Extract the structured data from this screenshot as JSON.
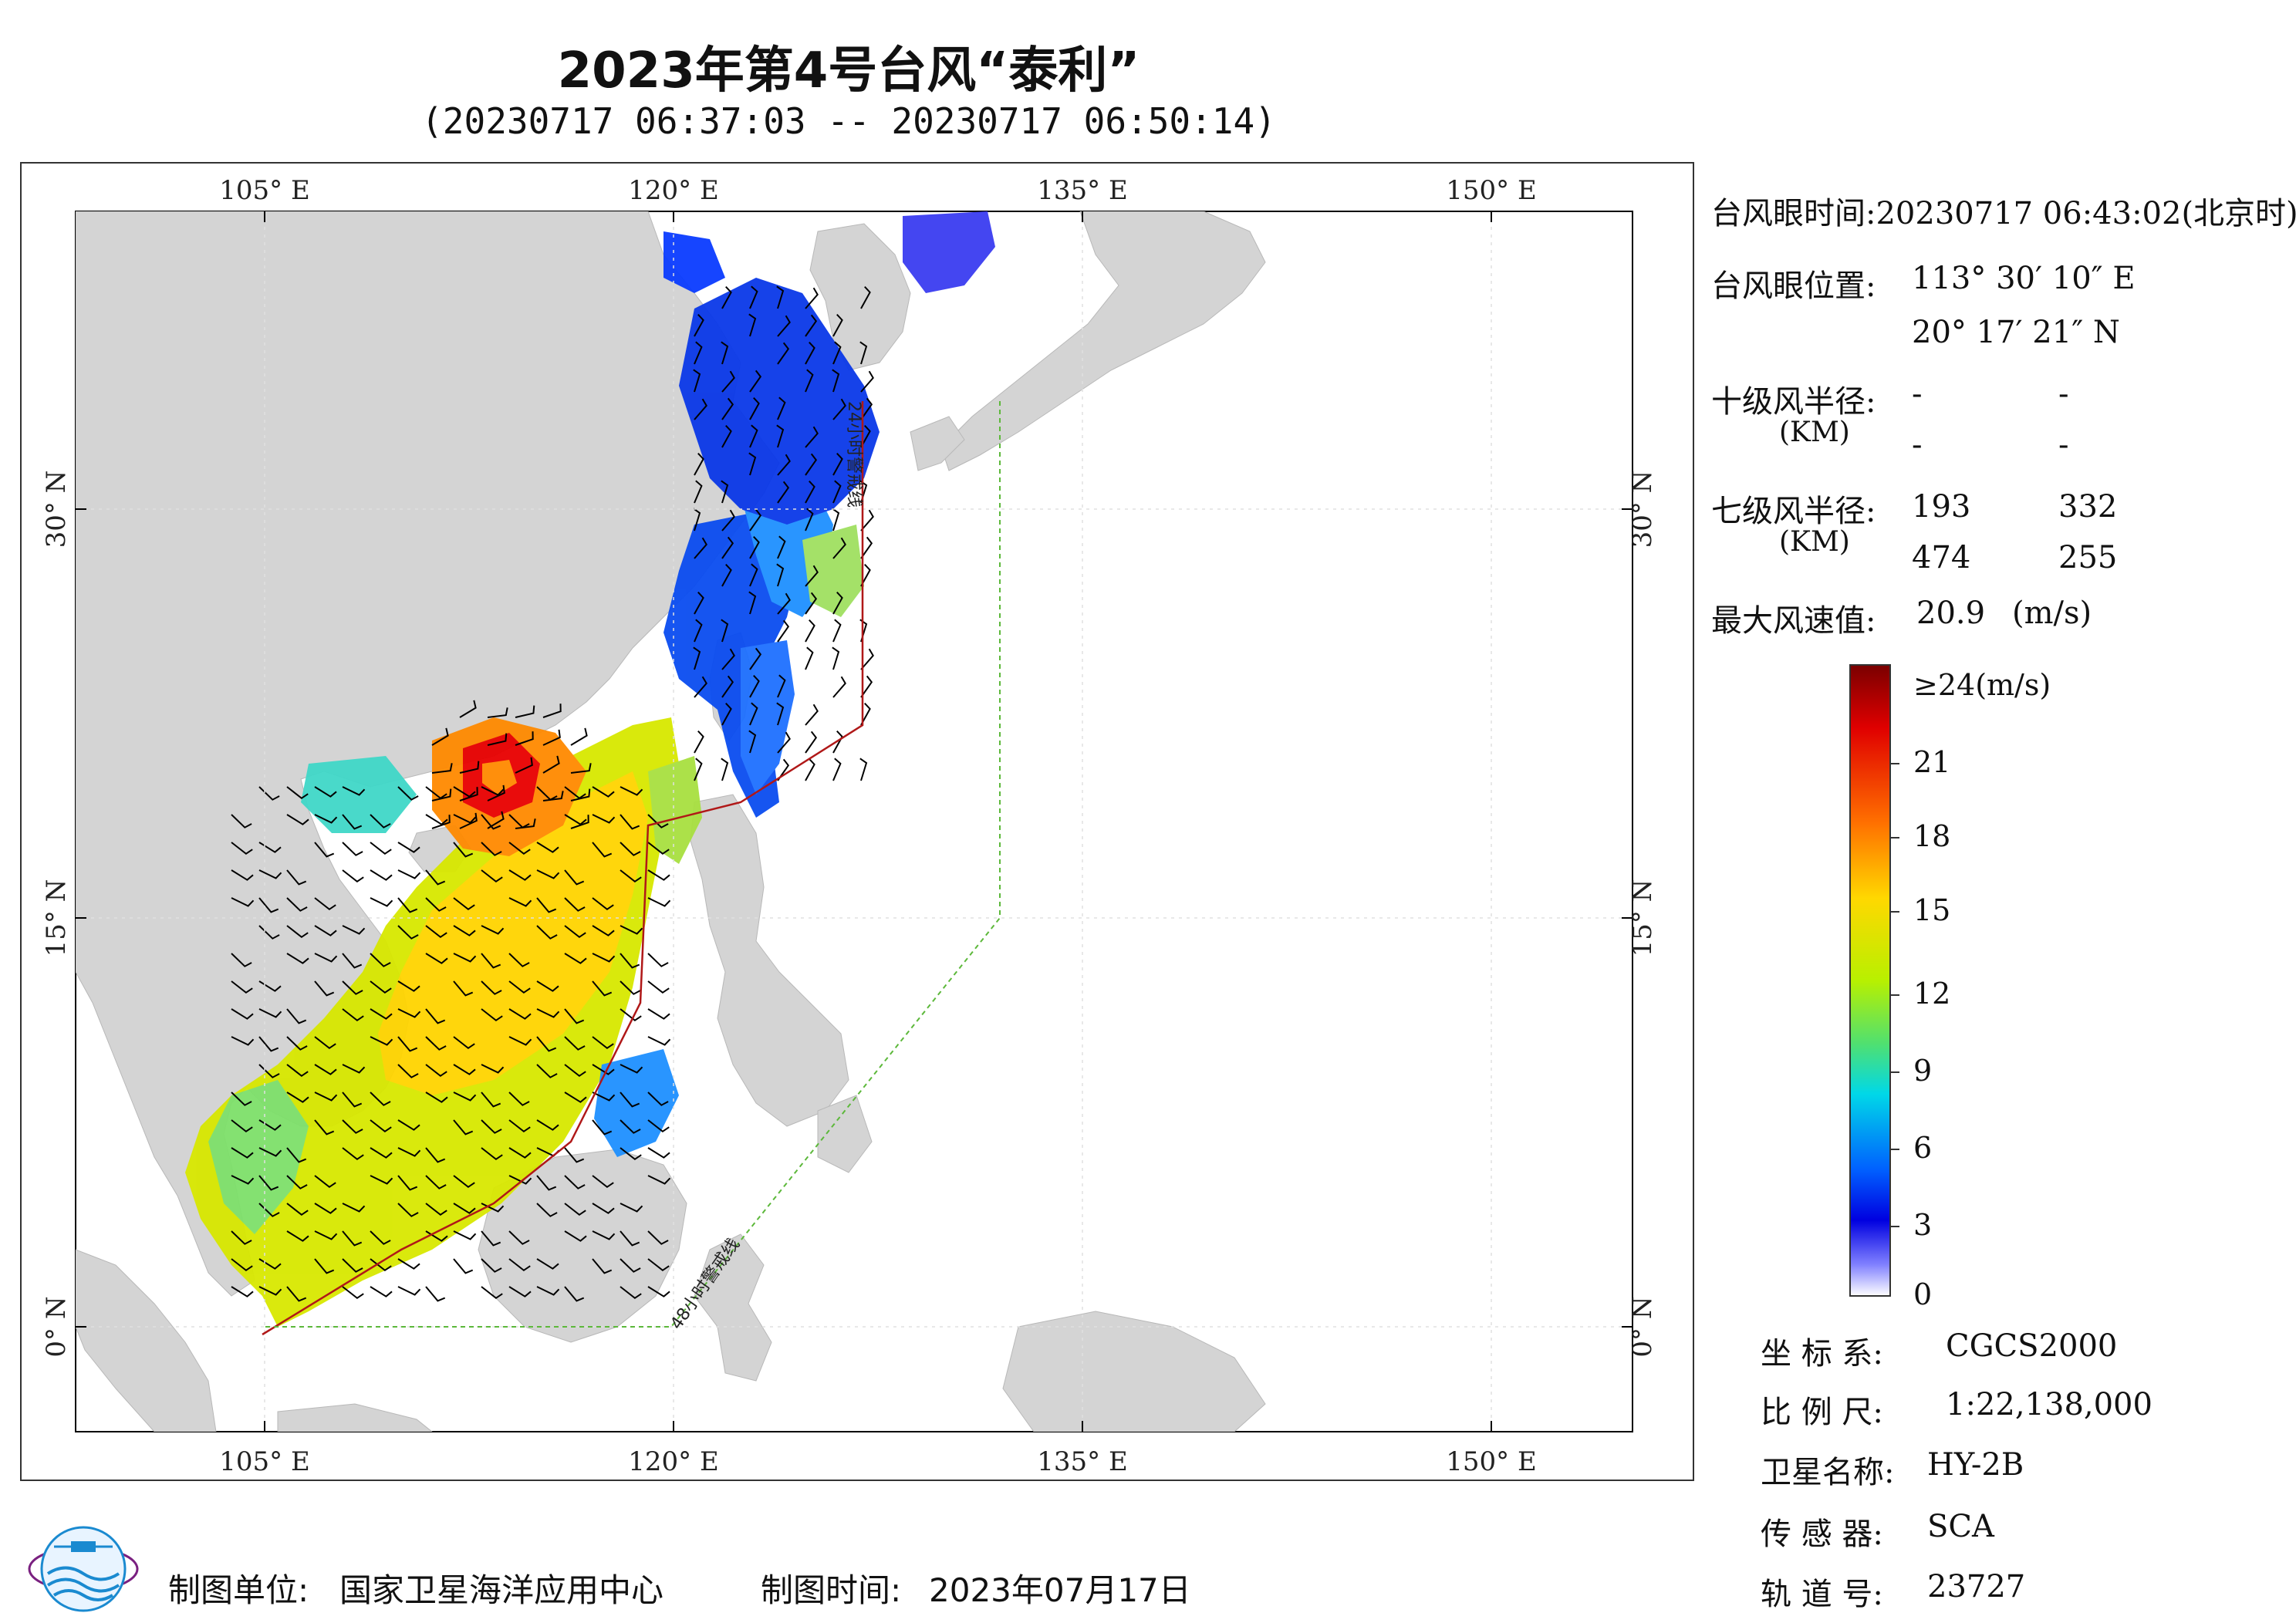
{
  "header": {
    "title": "2023年第4号台风“泰利”",
    "subtitle": "(20230717 06:37:03 -- 20230717 06:50:14)"
  },
  "map": {
    "lon_ticks": [
      "105° E",
      "120° E",
      "135° E",
      "150° E"
    ],
    "lat_ticks": [
      "30° N",
      "15° N",
      "0° N"
    ],
    "warning_24h_label": "24小时警戒线",
    "warning_48h_label": "48小时警戒线",
    "colors": {
      "land": "#d4d4d4",
      "sea": "#ffffff",
      "line24": "#b01818",
      "line48": "#5cb83a"
    }
  },
  "info": {
    "eye_time_label": "台风眼时间:",
    "eye_time_value": "20230717 06:43:02(北京时)",
    "eye_pos_label": "台风眼位置:",
    "eye_lon": "113° 30′ 10″ E",
    "eye_lat": "20° 17′ 21″ N",
    "r10_label": "十级风半径:",
    "r10_unit": "(KM)",
    "r10_values": [
      "-",
      "-",
      "-",
      "-"
    ],
    "r7_label": "七级风半径:",
    "r7_unit": "(KM)",
    "r7_values": [
      "193",
      "332",
      "474",
      "255"
    ],
    "max_wind_label": "最大风速值:",
    "max_wind_value": "20.9",
    "max_wind_unit": "(m/s)"
  },
  "colorbar": {
    "top_label": "≥24(m/s)",
    "ticks": [
      "21",
      "18",
      "15",
      "12",
      "9",
      "6",
      "3",
      "0"
    ]
  },
  "meta": {
    "crs_label": "坐 标 系:",
    "crs_value": "CGCS2000",
    "scale_label": "比 例 尺:",
    "scale_value": "1:22,138,000",
    "satellite_label": "卫星名称:",
    "satellite_value": "HY-2B",
    "sensor_label": "传 感 器:",
    "sensor_value": "SCA",
    "orbit_label": "轨 道 号:",
    "orbit_value": "23727"
  },
  "footer": {
    "maker_label": "制图单位:",
    "maker_value": "国家卫星海洋应用中心",
    "date_label": "制图时间:",
    "date_value": "2023年07月17日"
  }
}
